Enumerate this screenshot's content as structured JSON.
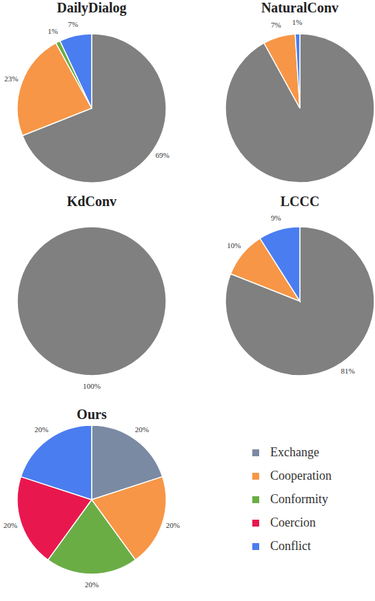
{
  "chart_data": [
    {
      "type": "pie",
      "title": "DailyDialog",
      "categories": [
        "Exchange",
        "Cooperation",
        "Conformity",
        "Conflict"
      ],
      "values": [
        69,
        23,
        1,
        7
      ],
      "value_labels": [
        "69%",
        "23%",
        "1%",
        "7%"
      ],
      "colors": [
        "#808080",
        "#f79646",
        "#6aad45",
        "#4a7df0"
      ],
      "data_labels": true
    },
    {
      "type": "pie",
      "title": "NaturalConv",
      "categories": [
        "Exchange",
        "Cooperation",
        "Conflict"
      ],
      "values": [
        92,
        7,
        1
      ],
      "value_labels": [
        null,
        "7%",
        "1%"
      ],
      "colors": [
        "#808080",
        "#f79646",
        "#4a7df0"
      ],
      "data_labels": true
    },
    {
      "type": "pie",
      "title": "KdConv",
      "categories": [
        "Exchange"
      ],
      "values": [
        100
      ],
      "value_labels": [
        "100%"
      ],
      "colors": [
        "#808080"
      ],
      "data_labels": true
    },
    {
      "type": "pie",
      "title": "LCCC",
      "categories": [
        "Exchange",
        "Cooperation",
        "Conflict"
      ],
      "values": [
        81,
        10,
        9
      ],
      "value_labels": [
        "81%",
        "10%",
        "9%"
      ],
      "colors": [
        "#808080",
        "#f79646",
        "#4a7df0"
      ],
      "data_labels": true
    },
    {
      "type": "pie",
      "title": "Ours",
      "categories": [
        "Exchange",
        "Cooperation",
        "Conformity",
        "Coercion",
        "Conflict"
      ],
      "values": [
        20,
        20,
        20,
        20,
        20
      ],
      "value_labels": [
        "20%",
        "20%",
        "20%",
        "20%",
        "20%"
      ],
      "colors": [
        "#7b8aa3",
        "#f79646",
        "#6aad45",
        "#e8184f",
        "#4a7df0"
      ],
      "data_labels": true,
      "legend": "right"
    }
  ]
}
